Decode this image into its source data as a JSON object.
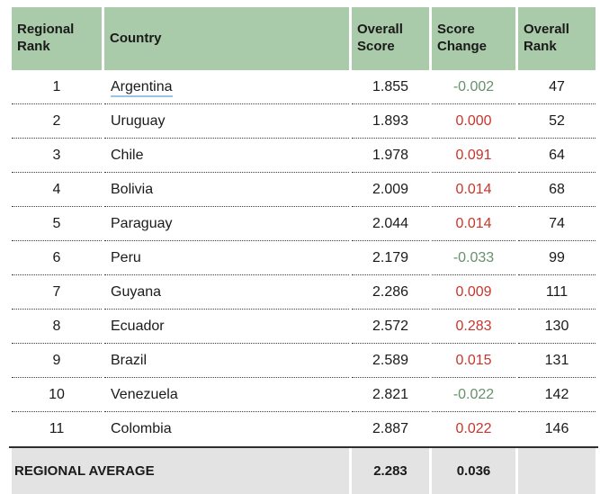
{
  "chart_data": {
    "type": "table",
    "title": "",
    "columns": [
      "Regional Rank",
      "Country",
      "Overall Score",
      "Score Change",
      "Overall Rank"
    ],
    "rows": [
      {
        "regional_rank": "1",
        "country": "Argentina",
        "overall_score": "1.855",
        "score_change": "-0.002",
        "overall_rank": "47"
      },
      {
        "regional_rank": "2",
        "country": "Uruguay",
        "overall_score": "1.893",
        "score_change": "0.000",
        "overall_rank": "52"
      },
      {
        "regional_rank": "3",
        "country": "Chile",
        "overall_score": "1.978",
        "score_change": "0.091",
        "overall_rank": "64"
      },
      {
        "regional_rank": "4",
        "country": "Bolivia",
        "overall_score": "2.009",
        "score_change": "0.014",
        "overall_rank": "68"
      },
      {
        "regional_rank": "5",
        "country": "Paraguay",
        "overall_score": "2.044",
        "score_change": "0.014",
        "overall_rank": "74"
      },
      {
        "regional_rank": "6",
        "country": "Peru",
        "overall_score": "2.179",
        "score_change": "-0.033",
        "overall_rank": "99"
      },
      {
        "regional_rank": "7",
        "country": "Guyana",
        "overall_score": "2.286",
        "score_change": "0.009",
        "overall_rank": "111"
      },
      {
        "regional_rank": "8",
        "country": "Ecuador",
        "overall_score": "2.572",
        "score_change": "0.283",
        "overall_rank": "130"
      },
      {
        "regional_rank": "9",
        "country": "Brazil",
        "overall_score": "2.589",
        "score_change": "0.015",
        "overall_rank": "131"
      },
      {
        "regional_rank": "10",
        "country": "Venezuela",
        "overall_score": "2.821",
        "score_change": "-0.022",
        "overall_rank": "142"
      },
      {
        "regional_rank": "11",
        "country": "Colombia",
        "overall_score": "2.887",
        "score_change": "0.022",
        "overall_rank": "146"
      }
    ],
    "footer": {
      "label": "REGIONAL AVERAGE",
      "overall_score": "2.283",
      "score_change": "0.036",
      "overall_rank": ""
    }
  },
  "colors": {
    "header_bg": "#a9cba9",
    "footer_bg": "#e3e3e3",
    "text": "#1a1a1a",
    "rule": "#3a3a3a",
    "border_dark": "#2e2e2e",
    "positive_change": "#c9352c",
    "negative_change": "#67906c",
    "underline": "#9cc3e5"
  }
}
